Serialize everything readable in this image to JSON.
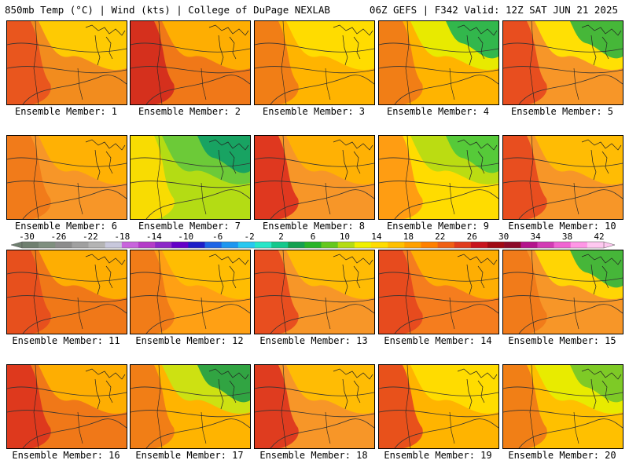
{
  "header": {
    "left": "850mb Temp (°C) | Wind (kts) | College of DuPage NEXLAB",
    "right": "06Z GEFS | F342 Valid: 12Z SAT JUN 21 2025"
  },
  "colorbar": {
    "labels": [
      "-30",
      "-26",
      "-22",
      "-18",
      "-14",
      "-10",
      "-6",
      "-2",
      "2",
      "6",
      "10",
      "14",
      "18",
      "22",
      "26",
      "30",
      "34",
      "38",
      "42"
    ],
    "colors": [
      "#6f7f6f",
      "#7f8f7f",
      "#8c8c8c",
      "#a0a0a0",
      "#b4b4b4",
      "#c8c8dc",
      "#c864dc",
      "#b43cc8",
      "#8c28c8",
      "#6400c8",
      "#1e1ec8",
      "#1e64e6",
      "#1e96f0",
      "#28c8f0",
      "#28e6c8",
      "#14c88c",
      "#14a050",
      "#28b428",
      "#64c81e",
      "#b4dc14",
      "#f0f000",
      "#ffdc00",
      "#ffc000",
      "#ffa000",
      "#ff8000",
      "#f06014",
      "#e03c1e",
      "#c8141e",
      "#a00a14",
      "#8c0a28",
      "#b4148c",
      "#d23cb4",
      "#f064d2",
      "#ff96e6",
      "#ffc8f0"
    ]
  },
  "members": [
    {
      "label": "Ensemble Member: 1",
      "base": "#f28c1e",
      "warm": "#e8501e",
      "cool": "#ffd000",
      "green": null
    },
    {
      "label": "Ensemble Member: 2",
      "base": "#f07818",
      "warm": "#d2281e",
      "cool": "#ffb400",
      "green": null
    },
    {
      "label": "Ensemble Member: 3",
      "base": "#ffb400",
      "warm": "#f07818",
      "cool": "#ffe000",
      "green": null
    },
    {
      "label": "Ensemble Member: 4",
      "base": "#ffb400",
      "warm": "#f07818",
      "cool": "#e6f000",
      "green": "#28b450"
    },
    {
      "label": "Ensemble Member: 5",
      "base": "#f79628",
      "warm": "#e6461e",
      "cool": "#ffe800",
      "green": "#3cb43c"
    },
    {
      "label": "Ensemble Member: 6",
      "base": "#f79628",
      "warm": "#f07818",
      "cool": "#ffb400",
      "green": null
    },
    {
      "label": "Ensemble Member: 7",
      "base": "#b4dc14",
      "warm": "#ffdc00",
      "cool": "#64c83c",
      "green": "#14a064"
    },
    {
      "label": "Ensemble Member: 8",
      "base": "#f79628",
      "warm": "#dc2d1e",
      "cool": "#ffb400",
      "green": null
    },
    {
      "label": "Ensemble Member: 9",
      "base": "#ffdc00",
      "warm": "#ff9614",
      "cool": "#b4dc14",
      "green": "#50c83c"
    },
    {
      "label": "Ensemble Member: 10",
      "base": "#f79628",
      "warm": "#e6461e",
      "cool": "#ffc000",
      "green": null
    },
    {
      "label": "Ensemble Member: 11",
      "base": "#f07818",
      "warm": "#e64b1e",
      "cool": "#ffb400",
      "green": null
    },
    {
      "label": "Ensemble Member: 12",
      "base": "#ffa014",
      "warm": "#f07818",
      "cool": "#ffc000",
      "green": null
    },
    {
      "label": "Ensemble Member: 13",
      "base": "#f79628",
      "warm": "#e6461e",
      "cool": "#ffc000",
      "green": null
    },
    {
      "label": "Ensemble Member: 14",
      "base": "#f57d1e",
      "warm": "#e6461e",
      "cool": "#ffb400",
      "green": null
    },
    {
      "label": "Ensemble Member: 15",
      "base": "#f79628",
      "warm": "#f07818",
      "cool": "#ffdc00",
      "green": "#3cb43c"
    },
    {
      "label": "Ensemble Member: 16",
      "base": "#f07818",
      "warm": "#dc321e",
      "cool": "#ffb400",
      "green": null
    },
    {
      "label": "Ensemble Member: 17",
      "base": "#ffb400",
      "warm": "#f07818",
      "cool": "#c8e614",
      "green": "#28a046"
    },
    {
      "label": "Ensemble Member: 18",
      "base": "#f79628",
      "warm": "#dc321e",
      "cool": "#ffc000",
      "green": null
    },
    {
      "label": "Ensemble Member: 19",
      "base": "#ffb400",
      "warm": "#e6461e",
      "cool": "#ffe000",
      "green": null
    },
    {
      "label": "Ensemble Member: 20",
      "base": "#ffc000",
      "warm": "#f07818",
      "cool": "#e6f000",
      "green": "#78c828"
    }
  ]
}
